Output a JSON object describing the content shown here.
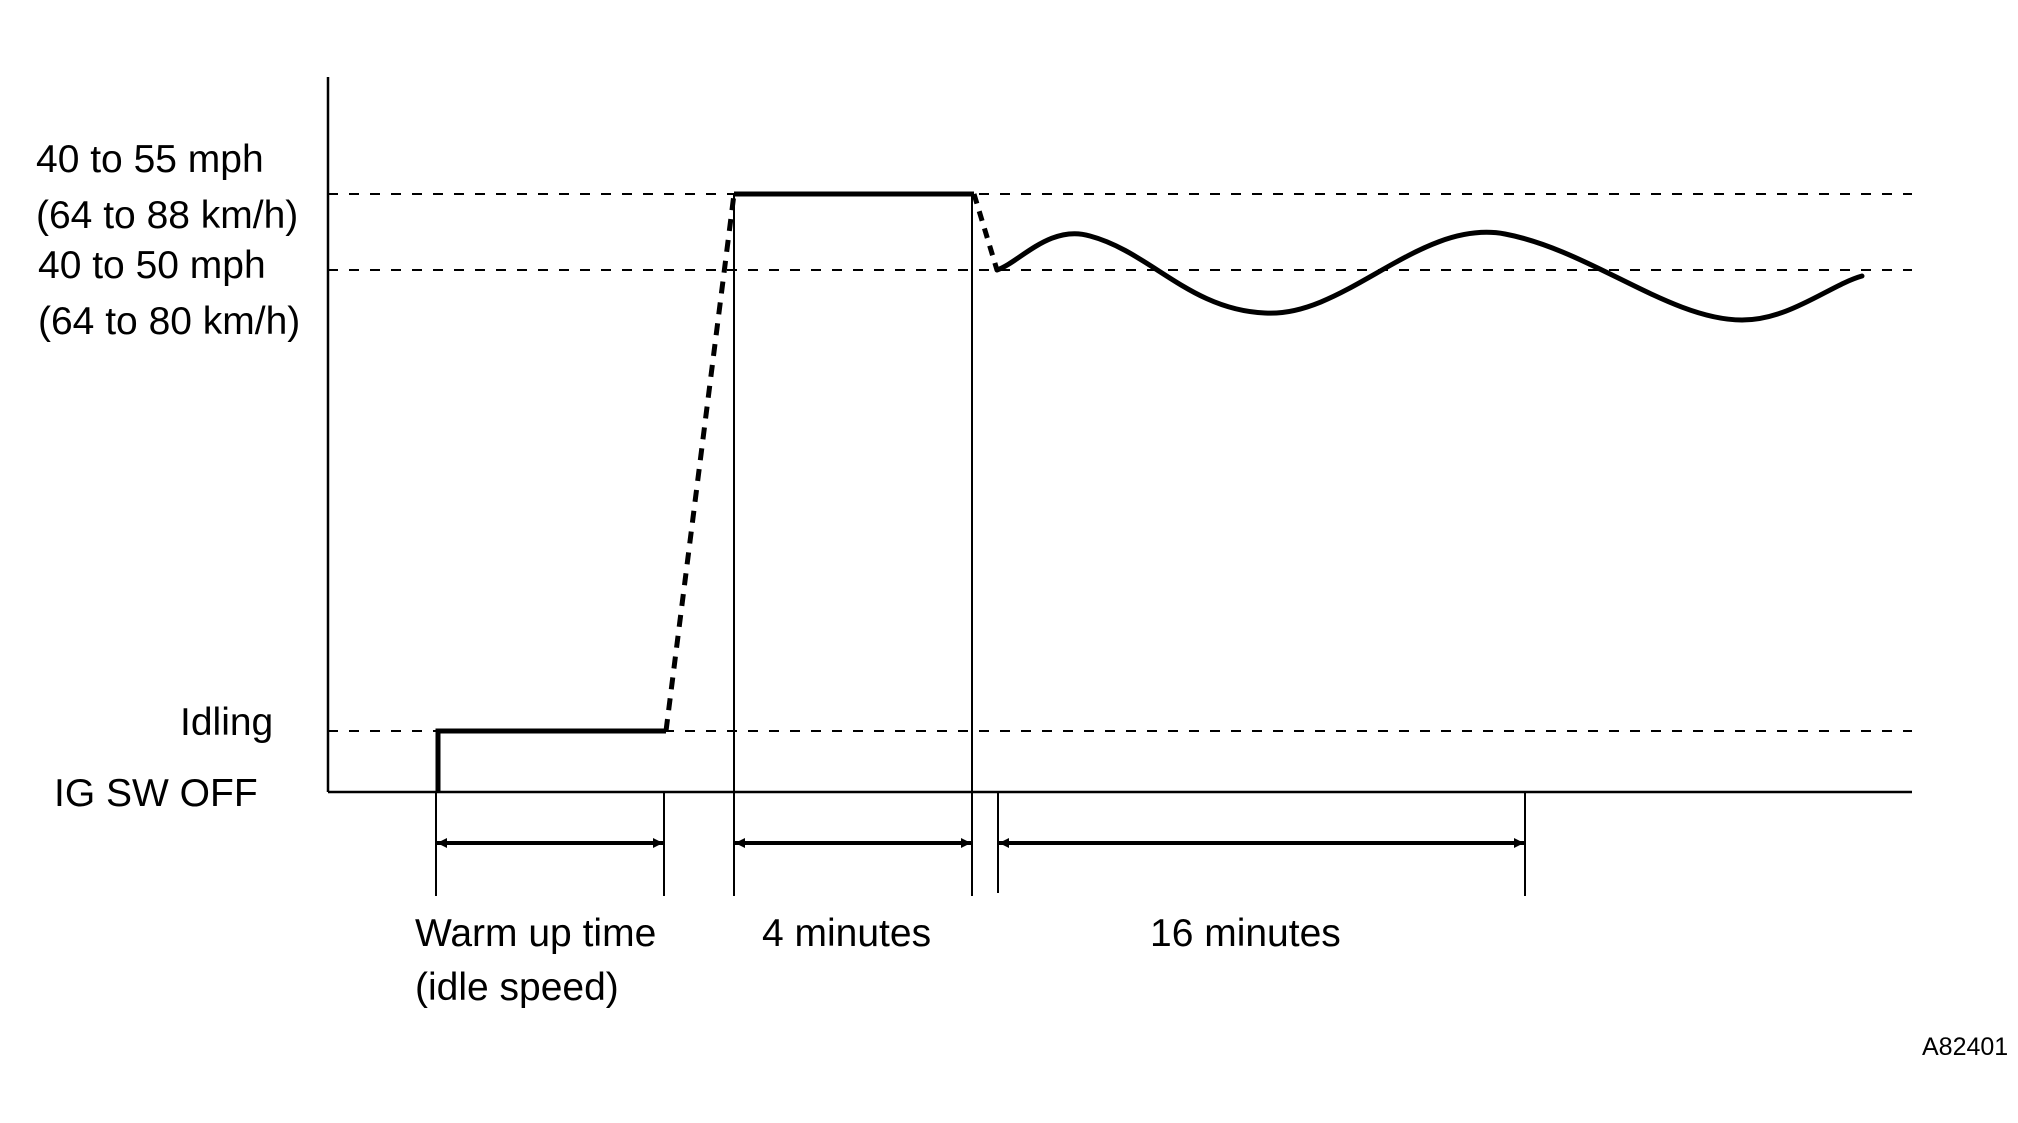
{
  "y_levels": {
    "high_top": {
      "line1": "40 to 55 mph",
      "line2": "(64 to 88 km/h)"
    },
    "high_bottom": {
      "line1": "40 to 50 mph",
      "line2": "(64 to 80 km/h)"
    },
    "idling": "Idling",
    "ig_sw_off": "IG SW OFF"
  },
  "intervals": {
    "warm_up": {
      "line1": "Warm up time",
      "line2": "(idle speed)"
    },
    "hold": "4 minutes",
    "cruise": "16 minutes"
  },
  "figure_code": "A82401",
  "colors": {
    "ink": "#000000",
    "background": "#ffffff"
  }
}
